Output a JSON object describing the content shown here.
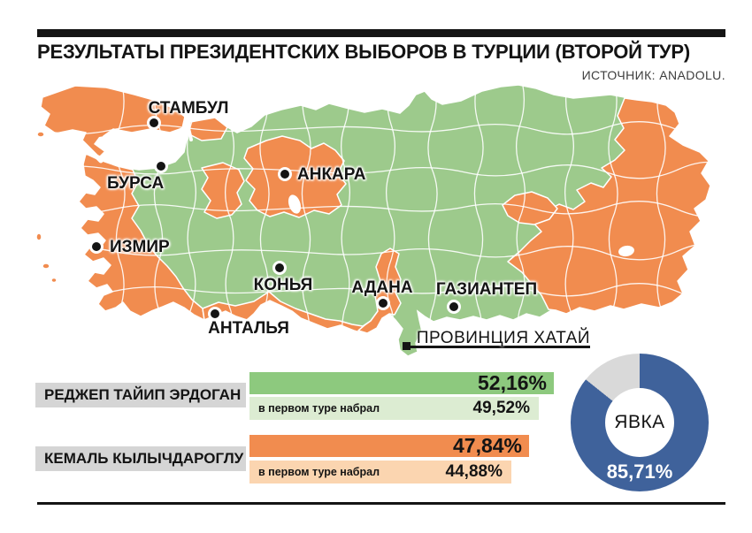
{
  "header": {
    "title": "РЕЗУЛЬТАТЫ ПРЕЗИДЕНТСКИХ ВЫБОРОВ В ТУРЦИИ (ВТОРОЙ ТУР)",
    "source": "ИСТОЧНИК: ANADOLU."
  },
  "map": {
    "cities": [
      {
        "name": "СТАМБУЛ"
      },
      {
        "name": "БУРСА"
      },
      {
        "name": "АНКАРА"
      },
      {
        "name": "ИЗМИР"
      },
      {
        "name": "КОНЬЯ"
      },
      {
        "name": "АДАНА"
      },
      {
        "name": "ГАЗИАНТЕП"
      },
      {
        "name": "АНТАЛЬЯ"
      }
    ],
    "callout_label": "ПРОВИНЦИЯ ХАТАЙ"
  },
  "results": {
    "candidates": [
      {
        "name": "РЕДЖЕП ТАЙИП ЭРДОГАН",
        "second_round": "52,16%",
        "first_round_label": "в первом туре набрал",
        "first_round": "49,52%"
      },
      {
        "name": "КЕМАЛЬ КЫЛЫЧДАРОГЛУ",
        "second_round": "47,84%",
        "first_round_label": "в первом туре набрал",
        "first_round": "44,88%"
      }
    ]
  },
  "turnout": {
    "label": "ЯВКА",
    "value_label": "85,71%"
  },
  "colors": {
    "map_green": "#9dca8c",
    "map_orange": "#f18c4f",
    "bar_green": "#8dc97e",
    "bar_green_light": "#dcecd2",
    "bar_orange": "#f18c4f",
    "bar_orange_light": "#fbd5b0",
    "label_gray": "#d5d5d5",
    "donut_blue": "#3f629b",
    "donut_gray": "#d9d9d9",
    "ink": "#141414"
  },
  "chart_data": [
    {
      "type": "bar",
      "title": "РЕЗУЛЬТАТЫ ПРЕЗИДЕНТСКИХ ВЫБОРОВ В ТУРЦИИ (ВТОРОЙ ТУР)",
      "categories": [
        "РЕДЖЕП ТАЙИП ЭРДОГАН",
        "КЕМАЛЬ КЫЛЫЧДАРОГЛУ"
      ],
      "series": [
        {
          "name": "второй тур",
          "values": [
            52.16,
            47.84
          ]
        },
        {
          "name": "в первом туре набрал",
          "values": [
            49.52,
            44.88
          ]
        }
      ],
      "unit": "%",
      "value_labels": [
        [
          "52,16%",
          "47,84%"
        ],
        [
          "49,52%",
          "44,88%"
        ]
      ]
    },
    {
      "type": "pie",
      "title": "ЯВКА",
      "slices": [
        {
          "label": "явка",
          "value": 85.71
        },
        {
          "label": "",
          "value": 14.29
        }
      ],
      "center_label": "ЯВКА",
      "value_label": "85,71%"
    },
    {
      "type": "choropleth",
      "area": "Турция, провинции (второй тур)",
      "color_meaning": {
        "green": "РЕДЖЕП ТАЙИП ЭРДОГАН",
        "orange": "КЕМАЛЬ КЫЛЫЧДАРОГЛУ"
      },
      "labeled_cities": [
        "СТАМБУЛ",
        "БУРСА",
        "АНКАРА",
        "ИЗМИР",
        "КОНЬЯ",
        "АДАНА",
        "ГАЗИАНТЕП",
        "АНТАЛЬЯ"
      ],
      "callout": "ПРОВИНЦИЯ ХАТАЙ"
    }
  ]
}
